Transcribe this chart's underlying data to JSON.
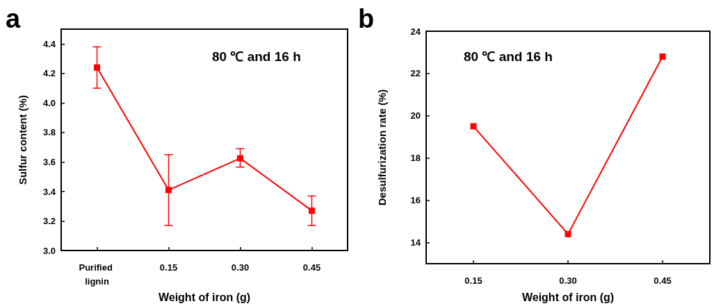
{
  "chart_data": [
    {
      "type": "line",
      "title": "a",
      "xlabel": "Weight of iron (g)",
      "ylabel": "Sulfur content (%)",
      "categories": [
        "Purified lignin",
        "0.15",
        "0.30",
        "0.45"
      ],
      "series": [
        {
          "color": "#ff0000",
          "values": [
            4.24,
            3.41,
            3.625,
            3.27
          ],
          "errors": [
            [
              4.1,
              4.38
            ],
            [
              3.17,
              3.65
            ],
            [
              3.565,
              3.69
            ],
            [
              3.17,
              3.37
            ]
          ]
        }
      ],
      "ylim": [
        3.0,
        4.5
      ],
      "yticks": [
        {
          "value": 3.0,
          "label": "3.0"
        },
        3.2,
        3.4,
        3.6,
        3.8,
        {
          "value": 4.0,
          "label": "4.0"
        },
        4.2,
        4.4
      ],
      "marker": "square",
      "line_style": "solid",
      "annotations": [
        "80 ℃ and 16 h"
      ]
    },
    {
      "type": "line",
      "title": "b",
      "xlabel": "Weight of iron (g)",
      "ylabel": "Desulfurization rate (%)",
      "categories": [
        "0.15",
        "0.30",
        "0.45"
      ],
      "series": [
        {
          "color": "#ff0000",
          "values": [
            19.5,
            14.4,
            22.8
          ]
        }
      ],
      "ylim": [
        13,
        24
      ],
      "yticks": [
        14,
        16,
        18,
        20,
        22,
        24
      ],
      "marker": "square",
      "line_style": "solid",
      "annotations": [
        "80 ℃ and 16 h"
      ]
    }
  ]
}
